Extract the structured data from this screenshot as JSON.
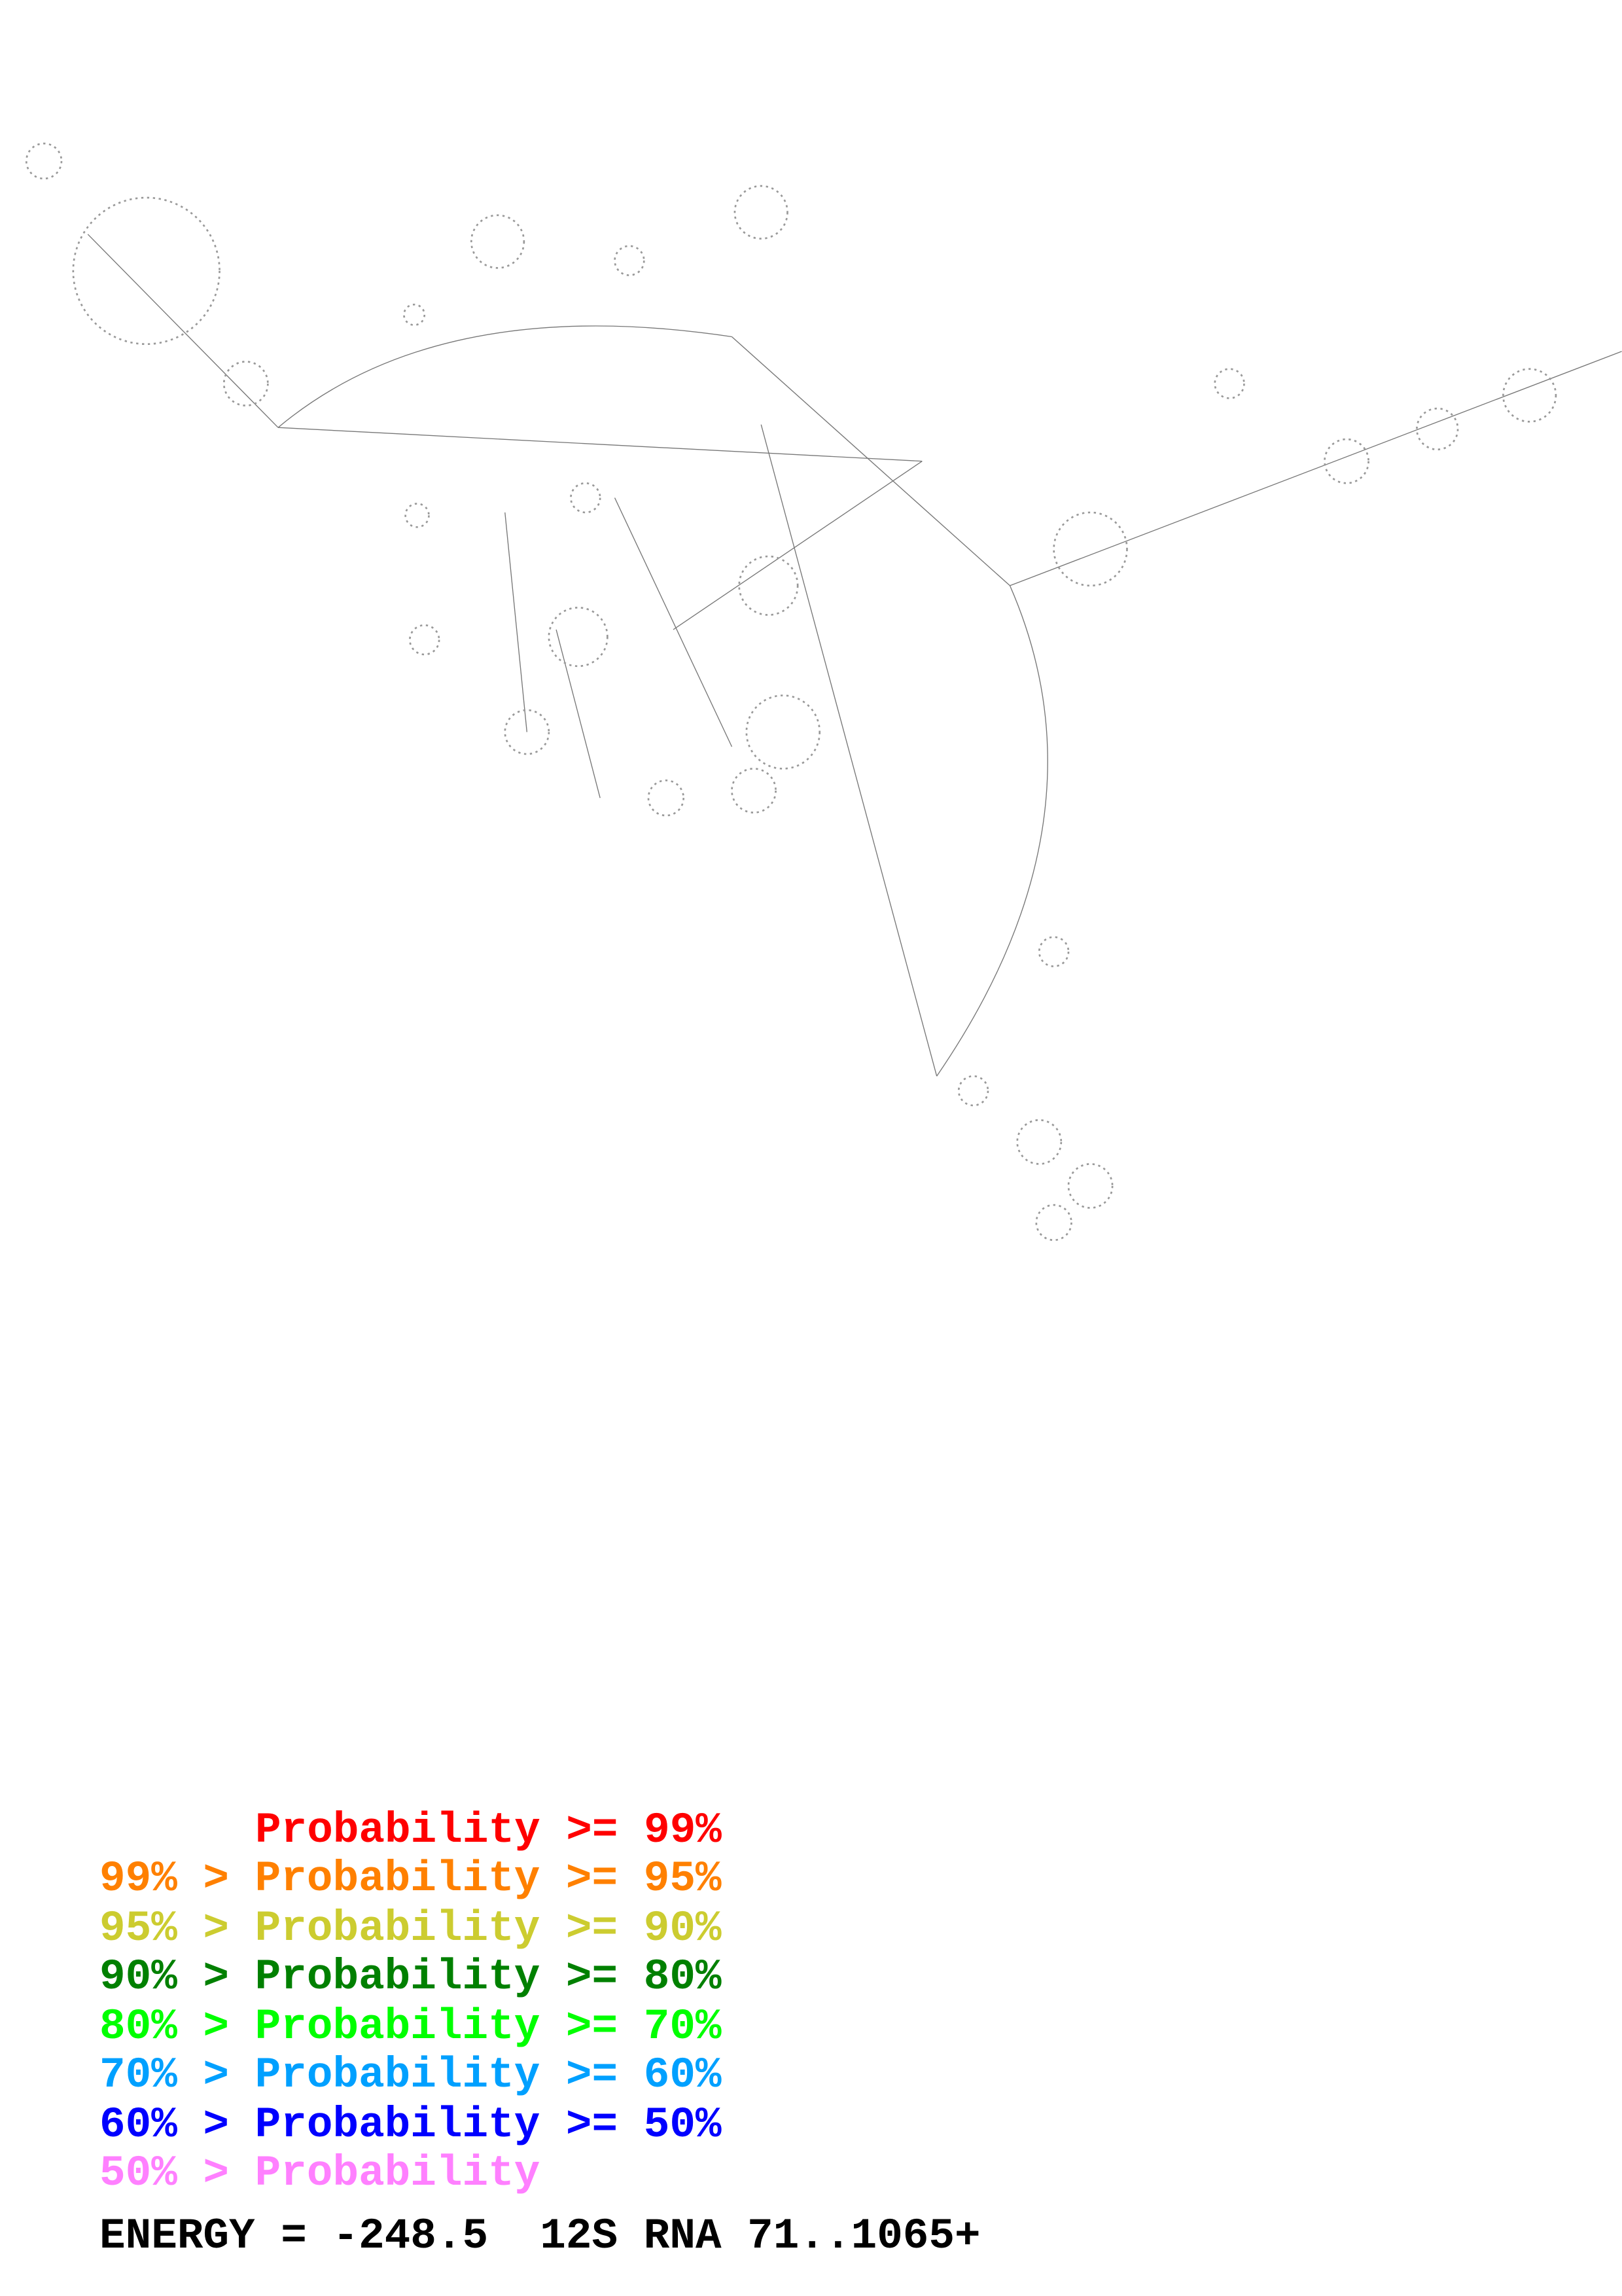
{
  "legend": [
    {
      "text": "Probability >= 99%",
      "color": "#ff0000"
    },
    {
      "text": "99% > Probability >= 95%",
      "color": "#ff8000"
    },
    {
      "text": "95% > Probability >= 90%",
      "color": "#cccc30"
    },
    {
      "text": "90% > Probability >= 80%",
      "color": "#008000"
    },
    {
      "text": "80% > Probability >= 70%",
      "color": "#00ff00"
    },
    {
      "text": "70% > Probability >= 60%",
      "color": "#00a0ff"
    },
    {
      "text": "60% > Probability >= 50%",
      "color": "#0000ff"
    },
    {
      "text": "50% > Probability",
      "color": "#ff80ff"
    }
  ],
  "footer": "ENERGY = -248.5  12S RNA 71..1065+"
}
